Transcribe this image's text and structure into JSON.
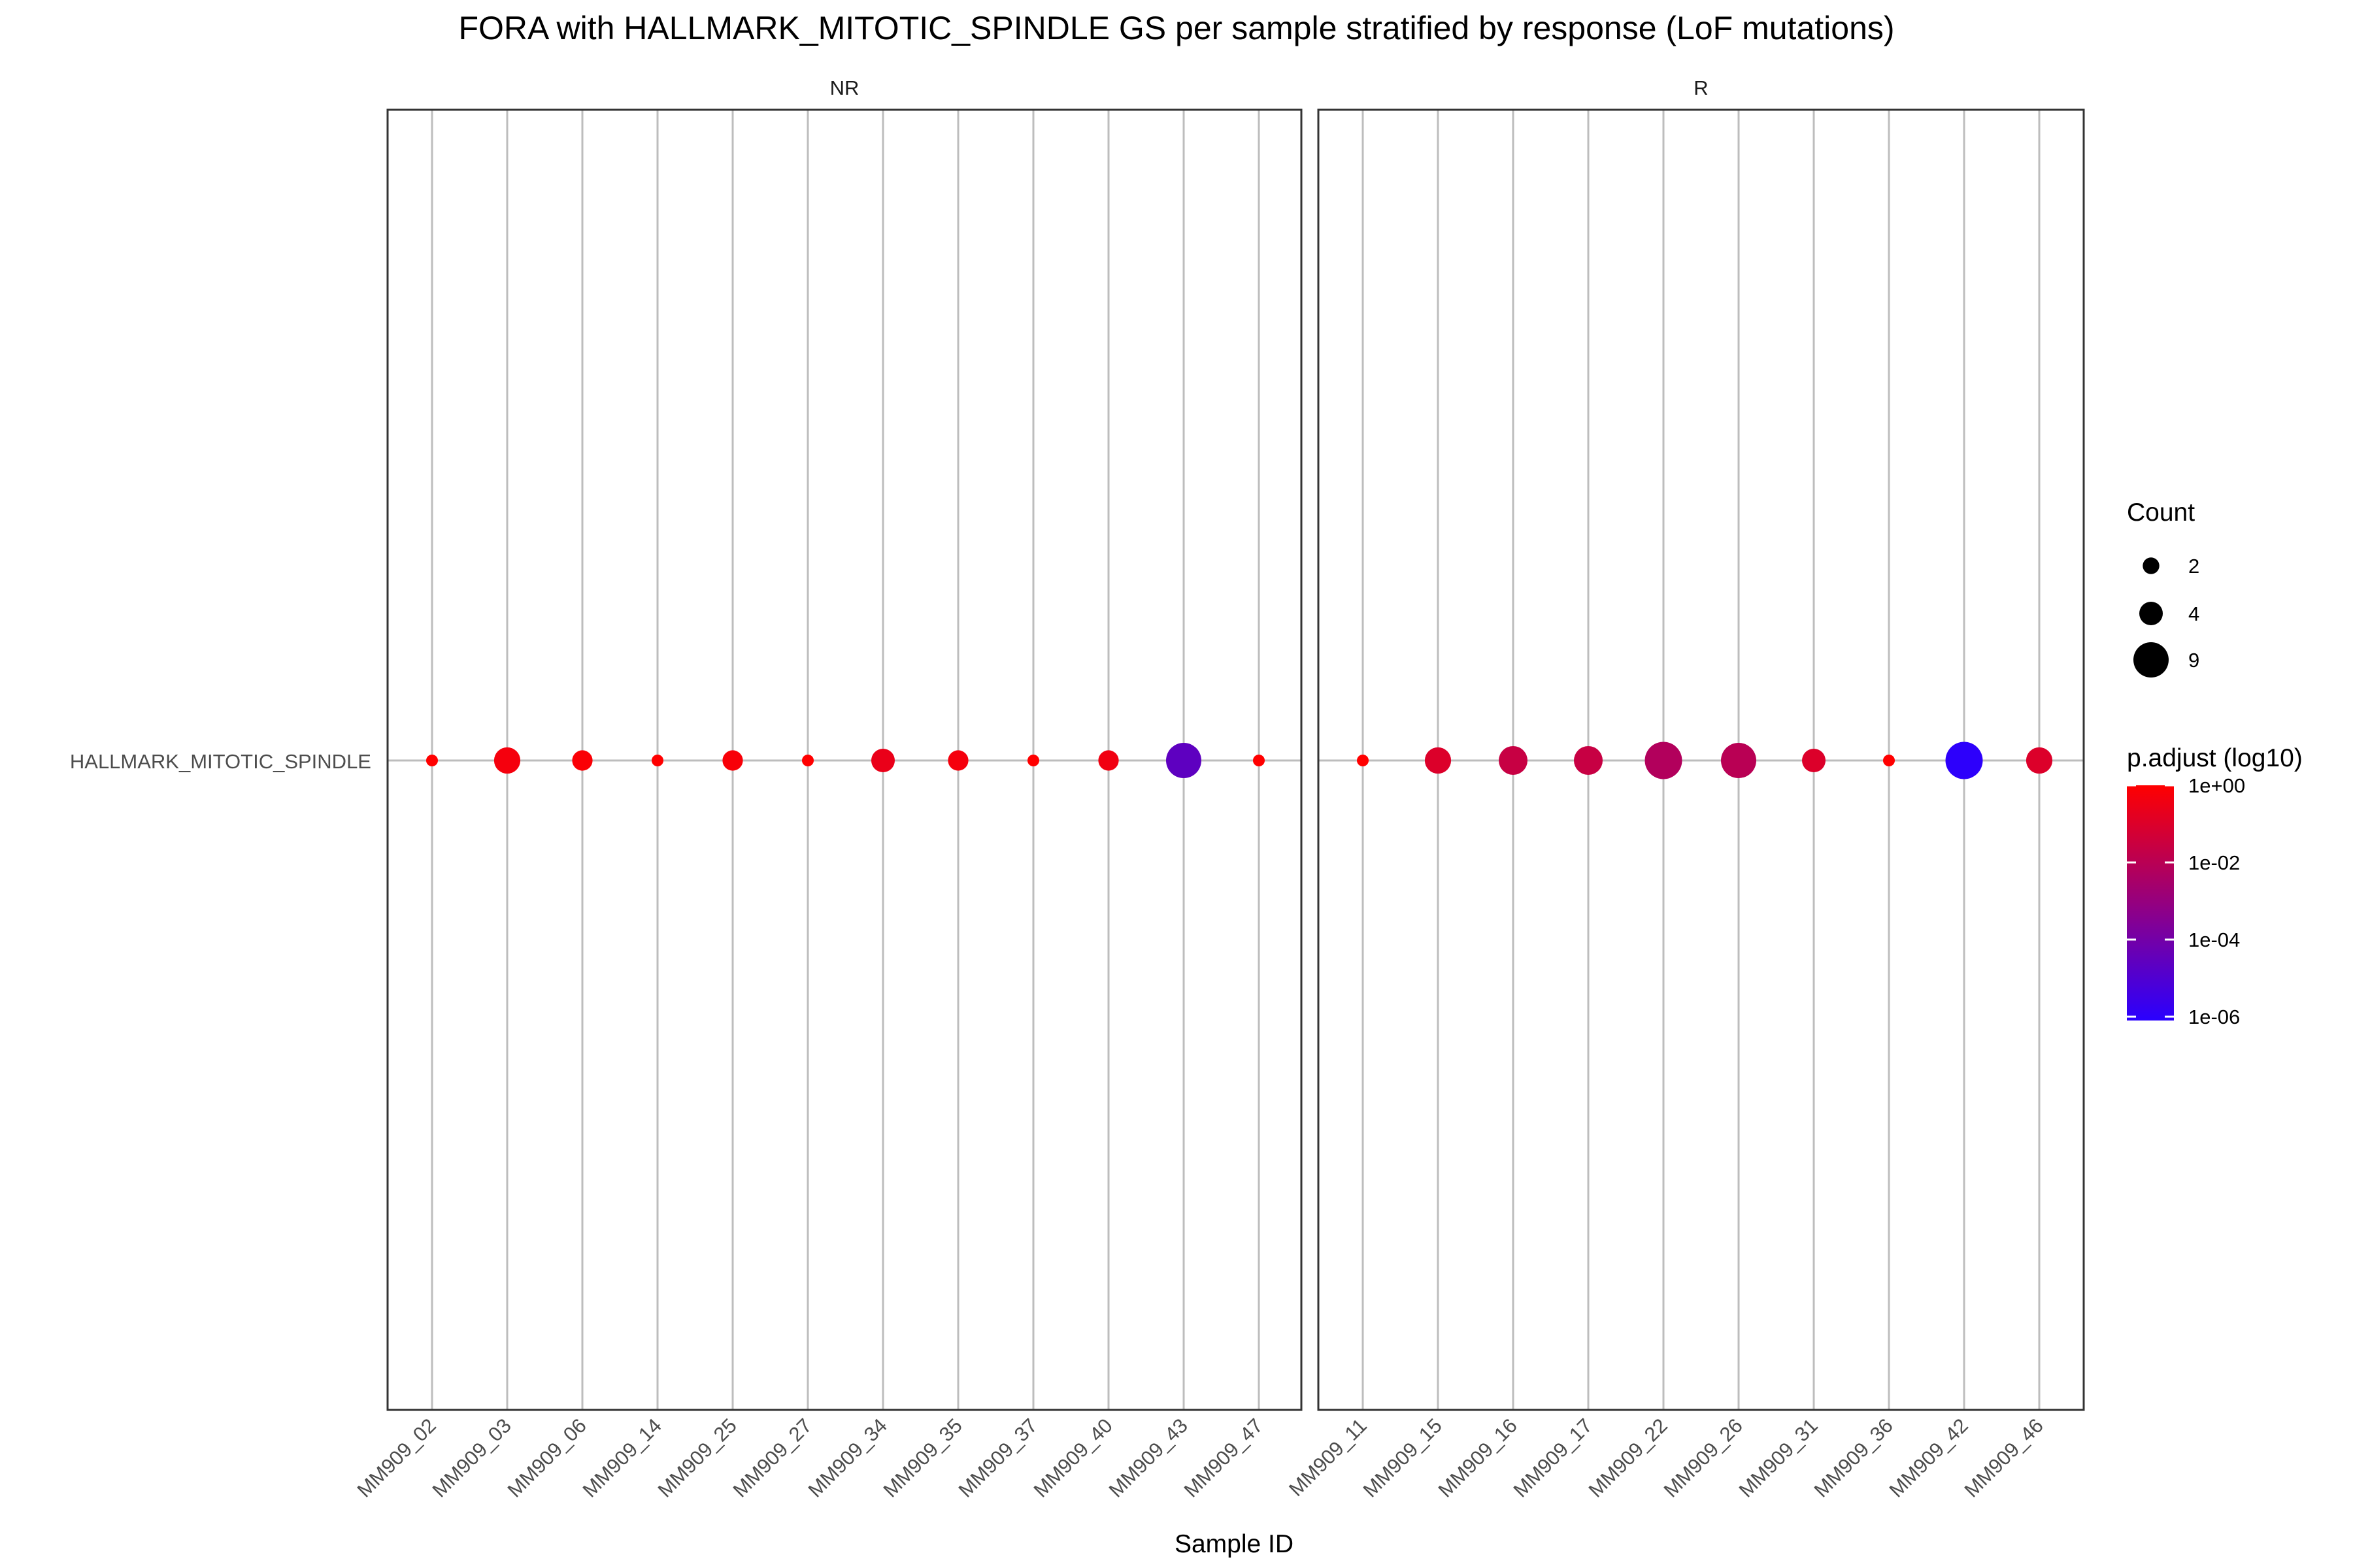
{
  "chart_data": {
    "type": "scatter",
    "title": "FORA with HALLMARK_MITOTIC_SPINDLE GS per sample stratified by response (LoF mutations)",
    "xlabel": "Sample ID",
    "ylabel": "",
    "y_categories": [
      "HALLMARK_MITOTIC_SPINDLE"
    ],
    "grid": true,
    "legend_position": "right",
    "size_legend": {
      "title": "Count",
      "breaks": [
        2,
        4,
        9
      ],
      "labels": [
        "2",
        "4",
        "9"
      ]
    },
    "color_legend": {
      "title": "p.adjust (log10)",
      "breaks_log10": [
        0,
        -2,
        -4,
        -6
      ],
      "labels": [
        "1e+00",
        "1e-02",
        "1e-04",
        "1e-06"
      ],
      "low_color": "#2a00ff",
      "high_color": "#ff0000",
      "range_log10": [
        -6.1,
        0
      ]
    },
    "panels": [
      {
        "name": "NR",
        "points": [
          {
            "sample": "MM909_02",
            "count": 1,
            "p_adjust_log10": 0.0
          },
          {
            "sample": "MM909_03",
            "count": 5,
            "p_adjust_log10": -0.3
          },
          {
            "sample": "MM909_06",
            "count": 3,
            "p_adjust_log10": -0.15
          },
          {
            "sample": "MM909_14",
            "count": 1,
            "p_adjust_log10": 0.0
          },
          {
            "sample": "MM909_25",
            "count": 3,
            "p_adjust_log10": -0.2
          },
          {
            "sample": "MM909_27",
            "count": 1,
            "p_adjust_log10": 0.0
          },
          {
            "sample": "MM909_34",
            "count": 4,
            "p_adjust_log10": -0.6
          },
          {
            "sample": "MM909_35",
            "count": 3,
            "p_adjust_log10": -0.3
          },
          {
            "sample": "MM909_37",
            "count": 1,
            "p_adjust_log10": 0.0
          },
          {
            "sample": "MM909_40",
            "count": 3,
            "p_adjust_log10": -0.4
          },
          {
            "sample": "MM909_43",
            "count": 9,
            "p_adjust_log10": -4.6
          },
          {
            "sample": "MM909_47",
            "count": 1,
            "p_adjust_log10": 0.0
          }
        ]
      },
      {
        "name": "R",
        "points": [
          {
            "sample": "MM909_11",
            "count": 1,
            "p_adjust_log10": 0.0
          },
          {
            "sample": "MM909_15",
            "count": 5,
            "p_adjust_log10": -1.0
          },
          {
            "sample": "MM909_16",
            "count": 6,
            "p_adjust_log10": -1.6
          },
          {
            "sample": "MM909_17",
            "count": 6,
            "p_adjust_log10": -1.6
          },
          {
            "sample": "MM909_22",
            "count": 10,
            "p_adjust_log10": -2.2
          },
          {
            "sample": "MM909_26",
            "count": 9,
            "p_adjust_log10": -2.0
          },
          {
            "sample": "MM909_31",
            "count": 4,
            "p_adjust_log10": -1.0
          },
          {
            "sample": "MM909_36",
            "count": 1,
            "p_adjust_log10": 0.0
          },
          {
            "sample": "MM909_42",
            "count": 10,
            "p_adjust_log10": -6.0
          },
          {
            "sample": "MM909_46",
            "count": 5,
            "p_adjust_log10": -1.0
          }
        ]
      }
    ]
  }
}
